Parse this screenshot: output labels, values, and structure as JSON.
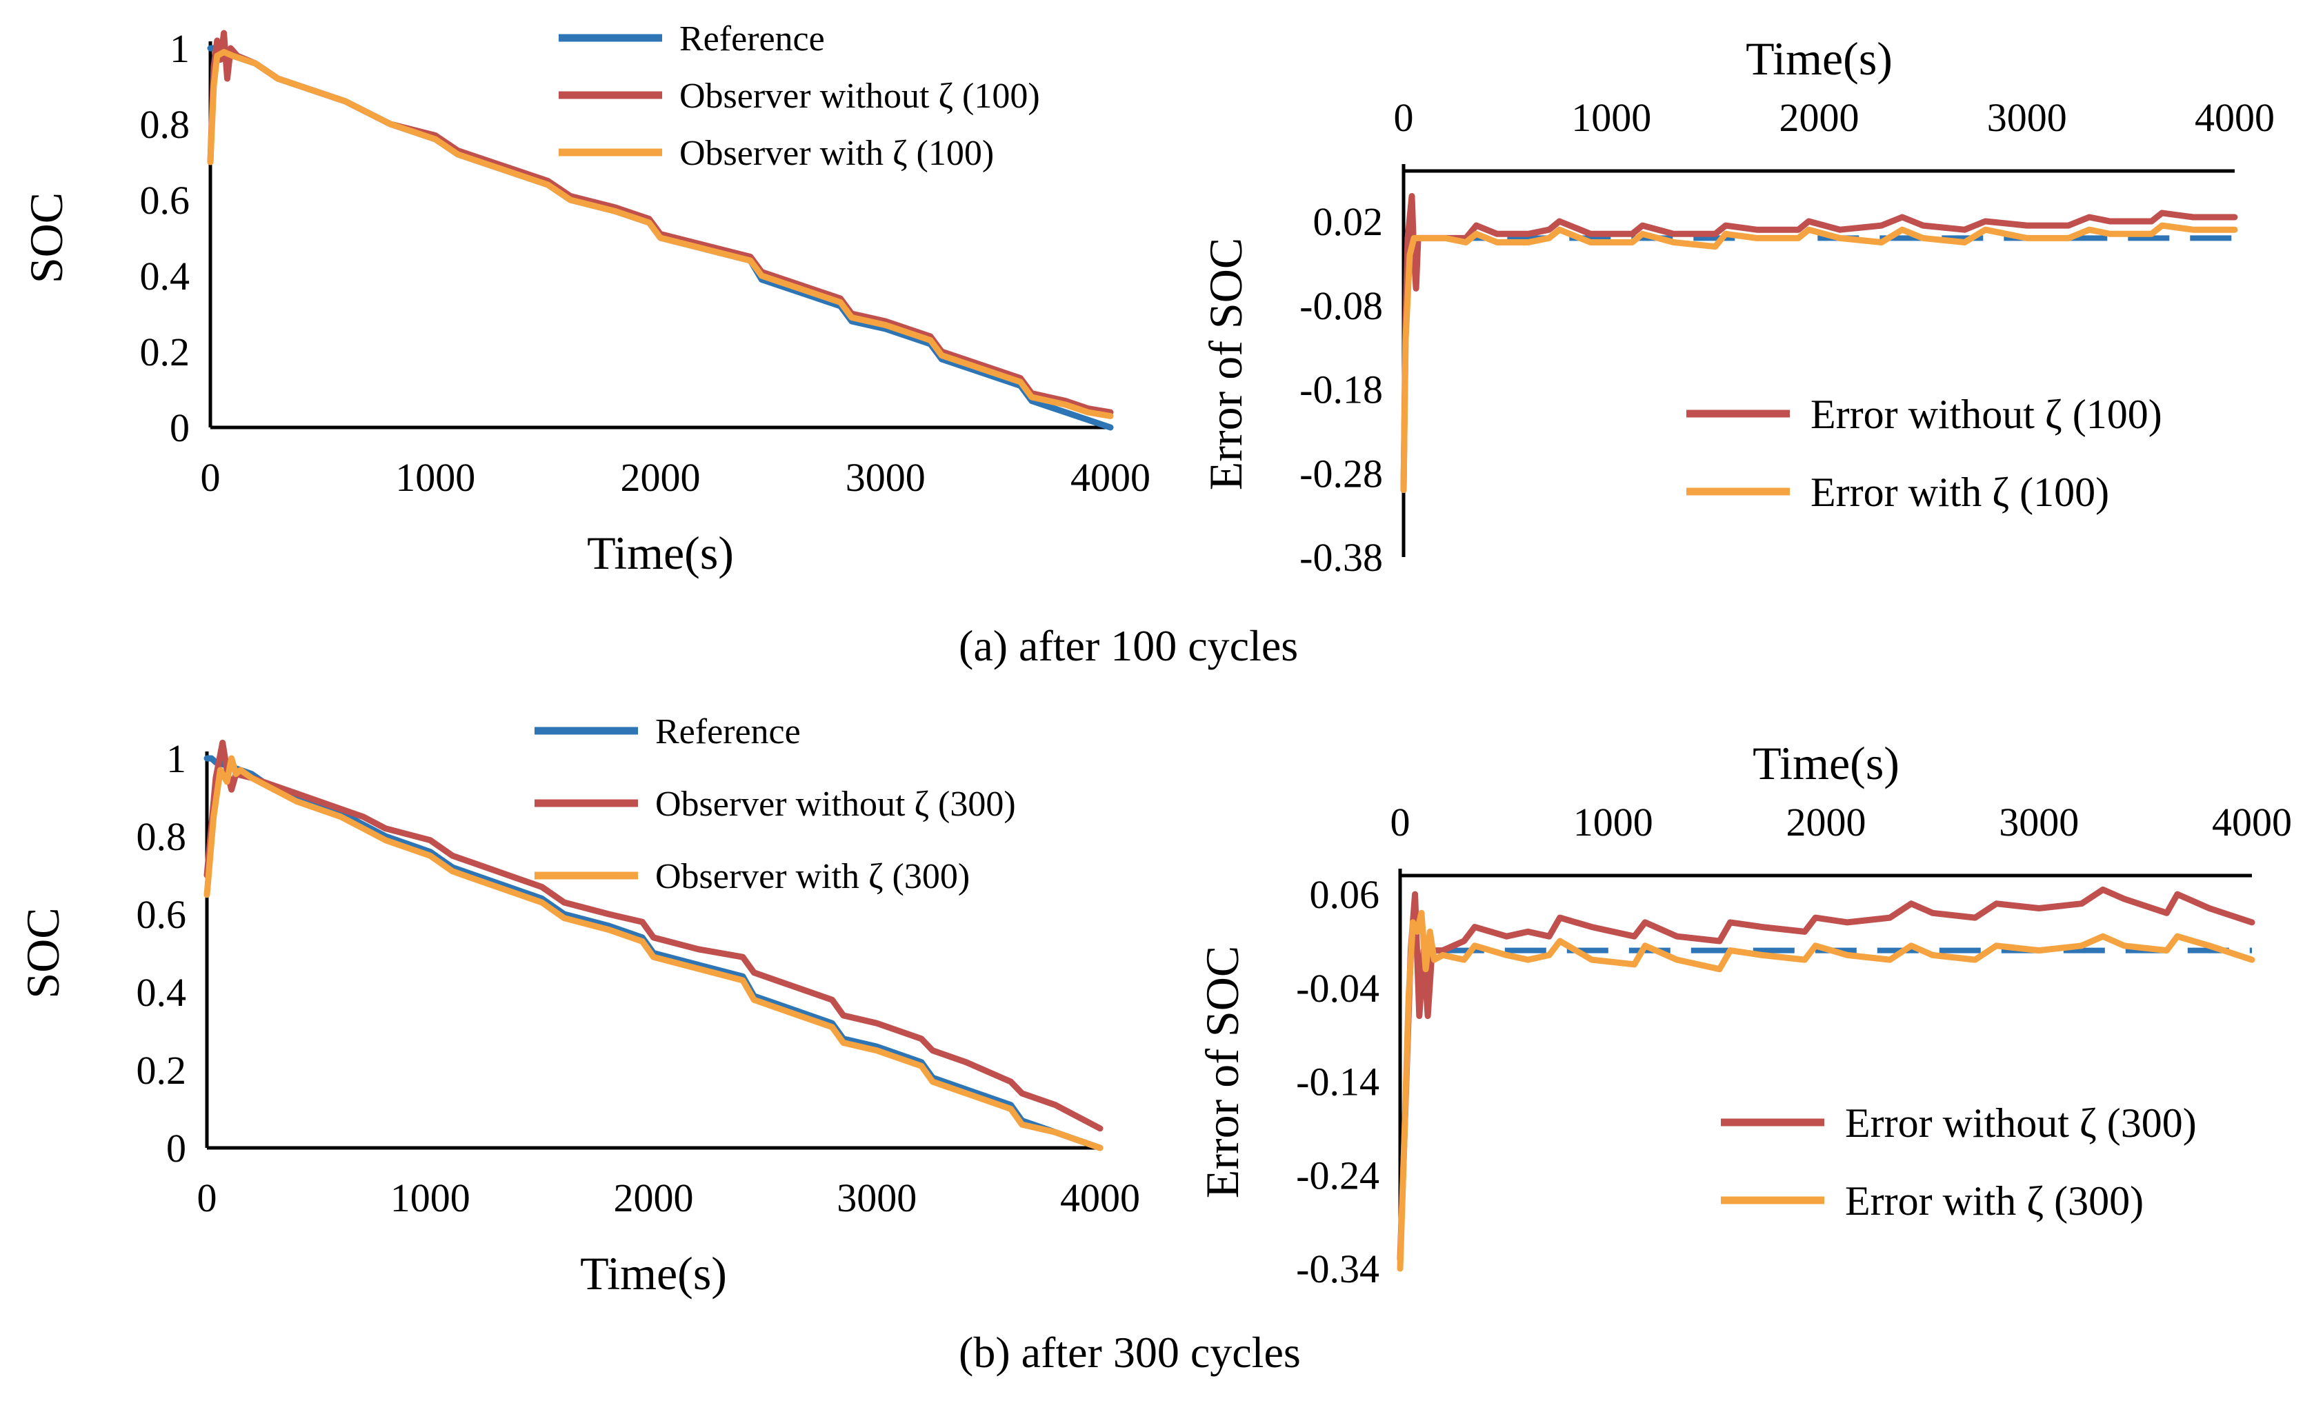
{
  "colors": {
    "reference": "#2E75B6",
    "without": "#C0504D",
    "with": "#F4A340",
    "axis": "#000000"
  },
  "captions": {
    "a": "(a) after 100 cycles",
    "b": "(b) after 300 cycles"
  },
  "chart_data": [
    {
      "id": "soc-100",
      "type": "line",
      "title": "",
      "xlabel": "Time(s)",
      "ylabel": "SOC",
      "xlim": [
        0,
        4000
      ],
      "ylim": [
        0,
        1
      ],
      "xticks": [
        0,
        1000,
        2000,
        3000,
        4000
      ],
      "xtick_labels": [
        "0",
        "1000",
        "2000",
        "3000",
        "4000"
      ],
      "yticks": [
        0,
        0.2,
        0.4,
        0.6,
        0.8,
        1
      ],
      "ytick_labels": [
        "0",
        "0.2",
        "0.4",
        "0.6",
        "0.8",
        "1"
      ],
      "legend": "top-right",
      "series": [
        {
          "name": "Reference",
          "color_key": "reference",
          "x": [
            0,
            20,
            40,
            100,
            200,
            300,
            400,
            600,
            700,
            800,
            1000,
            1100,
            1200,
            1400,
            1500,
            1600,
            1800,
            1950,
            2000,
            2200,
            2400,
            2450,
            2600,
            2800,
            2850,
            3000,
            3200,
            3250,
            3400,
            3600,
            3650,
            3800,
            3900,
            4000
          ],
          "y": [
            1.0,
            1.0,
            0.99,
            0.98,
            0.96,
            0.92,
            0.9,
            0.86,
            0.83,
            0.8,
            0.76,
            0.72,
            0.7,
            0.66,
            0.64,
            0.6,
            0.57,
            0.54,
            0.5,
            0.47,
            0.44,
            0.39,
            0.36,
            0.32,
            0.28,
            0.26,
            0.22,
            0.18,
            0.15,
            0.11,
            0.07,
            0.04,
            0.02,
            0.0
          ]
        },
        {
          "name": "Observer without  ζ (100)",
          "color_key": "without",
          "x": [
            0,
            15,
            30,
            45,
            60,
            75,
            90,
            120,
            200,
            300,
            400,
            600,
            700,
            800,
            1000,
            1100,
            1200,
            1400,
            1500,
            1600,
            1800,
            1950,
            2000,
            2200,
            2400,
            2450,
            2600,
            2800,
            2850,
            3000,
            3200,
            3250,
            3400,
            3600,
            3650,
            3800,
            3900,
            4000
          ],
          "y": [
            0.7,
            0.95,
            1.02,
            0.97,
            1.04,
            0.92,
            1.0,
            0.98,
            0.96,
            0.92,
            0.9,
            0.86,
            0.83,
            0.8,
            0.77,
            0.73,
            0.71,
            0.67,
            0.65,
            0.61,
            0.58,
            0.55,
            0.51,
            0.48,
            0.45,
            0.41,
            0.38,
            0.34,
            0.3,
            0.28,
            0.24,
            0.2,
            0.17,
            0.13,
            0.09,
            0.07,
            0.05,
            0.04
          ]
        },
        {
          "name": "Observer with  ζ (100)",
          "color_key": "with",
          "x": [
            0,
            15,
            30,
            60,
            100,
            200,
            300,
            400,
            600,
            700,
            800,
            1000,
            1100,
            1200,
            1400,
            1500,
            1600,
            1800,
            1950,
            2000,
            2200,
            2400,
            2450,
            2600,
            2800,
            2850,
            3000,
            3200,
            3250,
            3400,
            3600,
            3650,
            3800,
            3900,
            4000
          ],
          "y": [
            0.7,
            0.9,
            0.98,
            0.99,
            0.98,
            0.96,
            0.92,
            0.9,
            0.86,
            0.83,
            0.8,
            0.76,
            0.72,
            0.7,
            0.66,
            0.64,
            0.6,
            0.57,
            0.54,
            0.5,
            0.47,
            0.44,
            0.4,
            0.37,
            0.33,
            0.29,
            0.27,
            0.23,
            0.19,
            0.16,
            0.12,
            0.08,
            0.06,
            0.04,
            0.03
          ]
        }
      ]
    },
    {
      "id": "err-100",
      "type": "line",
      "title": "",
      "xlabel": "Time(s)",
      "ylabel": "Error of SOC",
      "xlim": [
        0,
        4000
      ],
      "ylim": [
        -0.38,
        0.08
      ],
      "xaxis_position": "top",
      "xticks": [
        0,
        1000,
        2000,
        3000,
        4000
      ],
      "xtick_labels": [
        "0",
        "1000",
        "2000",
        "3000",
        "4000"
      ],
      "yticks": [
        0.02,
        -0.08,
        -0.18,
        -0.28,
        -0.38
      ],
      "ytick_labels": [
        "0.02",
        "-0.08",
        "-0.18",
        "-0.28",
        "-0.38"
      ],
      "legend": "bottom-right",
      "series": [
        {
          "name": "Error without  ζ (100)",
          "color_key": "without",
          "x": [
            0,
            10,
            20,
            40,
            50,
            60,
            70,
            80,
            100,
            150,
            200,
            300,
            350,
            450,
            600,
            700,
            750,
            900,
            1100,
            1150,
            1300,
            1500,
            1550,
            1700,
            1900,
            1950,
            2100,
            2300,
            2400,
            2500,
            2700,
            2800,
            3000,
            3200,
            3300,
            3400,
            3600,
            3650,
            3800,
            4000
          ],
          "y": [
            -0.3,
            -0.1,
            0.0,
            0.05,
            -0.02,
            -0.06,
            0.0,
            0.0,
            0.0,
            0.0,
            0.0,
            0.0,
            0.015,
            0.005,
            0.005,
            0.01,
            0.02,
            0.005,
            0.005,
            0.015,
            0.005,
            0.005,
            0.015,
            0.01,
            0.01,
            0.02,
            0.01,
            0.015,
            0.025,
            0.015,
            0.01,
            0.02,
            0.015,
            0.015,
            0.025,
            0.02,
            0.02,
            0.03,
            0.025,
            0.025
          ]
        },
        {
          "name": "Error with  ζ (100)",
          "color_key": "with",
          "x": [
            0,
            10,
            30,
            50,
            80,
            100,
            200,
            300,
            350,
            450,
            600,
            700,
            750,
            900,
            1100,
            1150,
            1300,
            1500,
            1550,
            1700,
            1900,
            1950,
            2100,
            2300,
            2400,
            2500,
            2700,
            2800,
            3000,
            3200,
            3300,
            3400,
            3600,
            3650,
            3800,
            4000
          ],
          "y": [
            -0.3,
            -0.12,
            -0.02,
            0.0,
            0.0,
            0.0,
            0.0,
            -0.005,
            0.005,
            -0.005,
            -0.005,
            0.0,
            0.01,
            -0.005,
            -0.005,
            0.005,
            -0.005,
            -0.01,
            0.005,
            0.0,
            0.0,
            0.01,
            0.0,
            -0.005,
            0.01,
            0.0,
            -0.005,
            0.01,
            0.0,
            0.0,
            0.01,
            0.005,
            0.005,
            0.015,
            0.01,
            0.01
          ]
        },
        {
          "name": "Zero",
          "color_key": "reference",
          "dashed": true,
          "x": [
            200,
            4000
          ],
          "y": [
            0.0,
            0.0
          ]
        }
      ]
    },
    {
      "id": "soc-300",
      "type": "line",
      "title": "",
      "xlabel": "Time(s)",
      "ylabel": "SOC",
      "xlim": [
        0,
        4000
      ],
      "ylim": [
        0,
        1
      ],
      "xticks": [
        0,
        1000,
        2000,
        3000,
        4000
      ],
      "xtick_labels": [
        "0",
        "1000",
        "2000",
        "3000",
        "4000"
      ],
      "yticks": [
        0,
        0.2,
        0.4,
        0.6,
        0.8,
        1
      ],
      "ytick_labels": [
        "0",
        "0.2",
        "0.4",
        "0.6",
        "0.8",
        "1"
      ],
      "legend": "top-right",
      "series": [
        {
          "name": "Reference",
          "color_key": "reference",
          "x": [
            0,
            20,
            40,
            100,
            200,
            300,
            400,
            600,
            700,
            800,
            1000,
            1100,
            1200,
            1400,
            1500,
            1600,
            1800,
            1950,
            2000,
            2200,
            2400,
            2450,
            2600,
            2800,
            2850,
            3000,
            3200,
            3250,
            3400,
            3600,
            3650,
            3800,
            3900,
            4000
          ],
          "y": [
            1.0,
            1.0,
            0.99,
            0.98,
            0.96,
            0.92,
            0.9,
            0.86,
            0.83,
            0.8,
            0.76,
            0.72,
            0.7,
            0.66,
            0.64,
            0.6,
            0.57,
            0.54,
            0.5,
            0.47,
            0.44,
            0.39,
            0.36,
            0.32,
            0.28,
            0.26,
            0.22,
            0.18,
            0.15,
            0.11,
            0.07,
            0.04,
            0.02,
            0.0
          ]
        },
        {
          "name": "Observer without  ζ (300)",
          "color_key": "without",
          "x": [
            0,
            40,
            70,
            90,
            110,
            130,
            200,
            300,
            400,
            600,
            700,
            800,
            1000,
            1100,
            1200,
            1400,
            1500,
            1600,
            1800,
            1950,
            2000,
            2200,
            2400,
            2450,
            2600,
            2800,
            2850,
            3000,
            3200,
            3250,
            3400,
            3600,
            3650,
            3800,
            3900,
            4000
          ],
          "y": [
            0.7,
            0.95,
            1.04,
            0.97,
            0.92,
            0.96,
            0.95,
            0.93,
            0.91,
            0.87,
            0.85,
            0.82,
            0.79,
            0.75,
            0.73,
            0.69,
            0.67,
            0.63,
            0.6,
            0.58,
            0.54,
            0.51,
            0.49,
            0.45,
            0.42,
            0.38,
            0.34,
            0.32,
            0.28,
            0.25,
            0.22,
            0.17,
            0.14,
            0.11,
            0.08,
            0.05
          ]
        },
        {
          "name": "Observer with  ζ (300)",
          "color_key": "with",
          "x": [
            0,
            30,
            60,
            90,
            110,
            130,
            150,
            200,
            300,
            400,
            600,
            700,
            800,
            1000,
            1100,
            1200,
            1400,
            1500,
            1600,
            1800,
            1950,
            2000,
            2200,
            2400,
            2450,
            2600,
            2800,
            2850,
            3000,
            3200,
            3250,
            3400,
            3600,
            3650,
            3800,
            3900,
            4000
          ],
          "y": [
            0.65,
            0.85,
            0.97,
            0.94,
            1.0,
            0.96,
            0.97,
            0.95,
            0.92,
            0.89,
            0.85,
            0.82,
            0.79,
            0.75,
            0.71,
            0.69,
            0.65,
            0.63,
            0.59,
            0.56,
            0.53,
            0.49,
            0.46,
            0.43,
            0.38,
            0.35,
            0.31,
            0.27,
            0.25,
            0.21,
            0.17,
            0.14,
            0.1,
            0.06,
            0.04,
            0.02,
            0.0
          ]
        }
      ]
    },
    {
      "id": "err-300",
      "type": "line",
      "title": "",
      "xlabel": "Time(s)",
      "ylabel": "Error of SOC",
      "xlim": [
        0,
        4000
      ],
      "ylim": [
        -0.34,
        0.08
      ],
      "xaxis_position": "top",
      "xticks": [
        0,
        1000,
        2000,
        3000,
        4000
      ],
      "xtick_labels": [
        "0",
        "1000",
        "2000",
        "3000",
        "4000"
      ],
      "yticks": [
        0.06,
        -0.04,
        -0.14,
        -0.24,
        -0.34
      ],
      "ytick_labels": [
        "0.06",
        "-0.04",
        "-0.14",
        "-0.24",
        "-0.34"
      ],
      "legend": "bottom-right",
      "series": [
        {
          "name": "Error without  ζ (300)",
          "color_key": "without",
          "x": [
            0,
            20,
            50,
            70,
            90,
            110,
            130,
            150,
            200,
            300,
            350,
            500,
            600,
            700,
            750,
            900,
            1100,
            1150,
            1300,
            1500,
            1550,
            1700,
            1900,
            1950,
            2100,
            2300,
            2400,
            2500,
            2700,
            2800,
            3000,
            3200,
            3300,
            3400,
            3600,
            3650,
            3800,
            4000
          ],
          "y": [
            -0.33,
            -0.2,
            0.0,
            0.06,
            -0.07,
            0.0,
            -0.07,
            0.0,
            0.0,
            0.01,
            0.025,
            0.015,
            0.02,
            0.015,
            0.035,
            0.025,
            0.015,
            0.03,
            0.015,
            0.01,
            0.03,
            0.025,
            0.02,
            0.035,
            0.03,
            0.035,
            0.05,
            0.04,
            0.035,
            0.05,
            0.045,
            0.05,
            0.065,
            0.055,
            0.04,
            0.06,
            0.045,
            0.03
          ]
        },
        {
          "name": "Error with  ζ (300)",
          "color_key": "with",
          "x": [
            0,
            20,
            40,
            60,
            80,
            100,
            120,
            140,
            160,
            200,
            300,
            350,
            500,
            600,
            700,
            750,
            900,
            1100,
            1150,
            1300,
            1500,
            1550,
            1700,
            1900,
            1950,
            2100,
            2300,
            2400,
            2500,
            2700,
            2800,
            3000,
            3200,
            3300,
            3400,
            3600,
            3650,
            3800,
            4000
          ],
          "y": [
            -0.34,
            -0.2,
            -0.05,
            0.03,
            0.02,
            0.04,
            -0.02,
            0.02,
            -0.01,
            -0.005,
            -0.01,
            0.005,
            -0.005,
            -0.01,
            -0.005,
            0.01,
            -0.01,
            -0.015,
            0.005,
            -0.01,
            -0.02,
            0.0,
            -0.005,
            -0.01,
            0.005,
            -0.005,
            -0.01,
            0.005,
            -0.005,
            -0.01,
            0.005,
            0.0,
            0.005,
            0.015,
            0.005,
            0.0,
            0.015,
            0.005,
            -0.01
          ]
        },
        {
          "name": "Zero",
          "color_key": "reference",
          "dashed": true,
          "x": [
            200,
            4000
          ],
          "y": [
            0.0,
            0.0
          ]
        }
      ]
    }
  ]
}
